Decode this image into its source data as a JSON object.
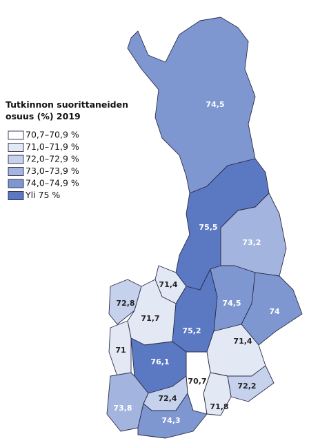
{
  "legend": {
    "title": [
      "Tutkinnon suorittaneiden",
      "osuus (%) 2019"
    ],
    "items": [
      {
        "label": "70,7–70,9 %",
        "color": "#ffffff"
      },
      {
        "label": "71,0–71,9 %",
        "color": "#e3e8f5"
      },
      {
        "label": "72,0–72,9 %",
        "color": "#c6d1ec"
      },
      {
        "label": "73,0–73,9 %",
        "color": "#a3b4de"
      },
      {
        "label": "74,0–74,9 %",
        "color": "#7f97d0"
      },
      {
        "label": "Yli 75 %",
        "color": "#5b78c3"
      }
    ]
  },
  "regions": [
    {
      "label": "74,5",
      "color": "#7f97d0"
    },
    {
      "label": "75,5",
      "color": "#5b78c3"
    },
    {
      "label": "73,2",
      "color": "#a3b4de"
    },
    {
      "label": "71,4",
      "color": "#e3e8f5"
    },
    {
      "label": "72,8",
      "color": "#c6d1ec"
    },
    {
      "label": "71,7",
      "color": "#e3e8f5"
    },
    {
      "label": "75,2",
      "color": "#5b78c3"
    },
    {
      "label": "74,5",
      "color": "#7f97d0"
    },
    {
      "label": "74",
      "color": "#7f97d0"
    },
    {
      "label": "71,4",
      "color": "#e3e8f5"
    },
    {
      "label": "72,2",
      "color": "#c6d1ec"
    },
    {
      "label": "71,8",
      "color": "#e3e8f5"
    },
    {
      "label": "70,7",
      "color": "#ffffff"
    },
    {
      "label": "71",
      "color": "#e3e8f5"
    },
    {
      "label": "76,1",
      "color": "#5b78c3"
    },
    {
      "label": "72,4",
      "color": "#c6d1ec"
    },
    {
      "label": "73,8",
      "color": "#a3b4de"
    },
    {
      "label": "74,3",
      "color": "#7f97d0"
    }
  ]
}
